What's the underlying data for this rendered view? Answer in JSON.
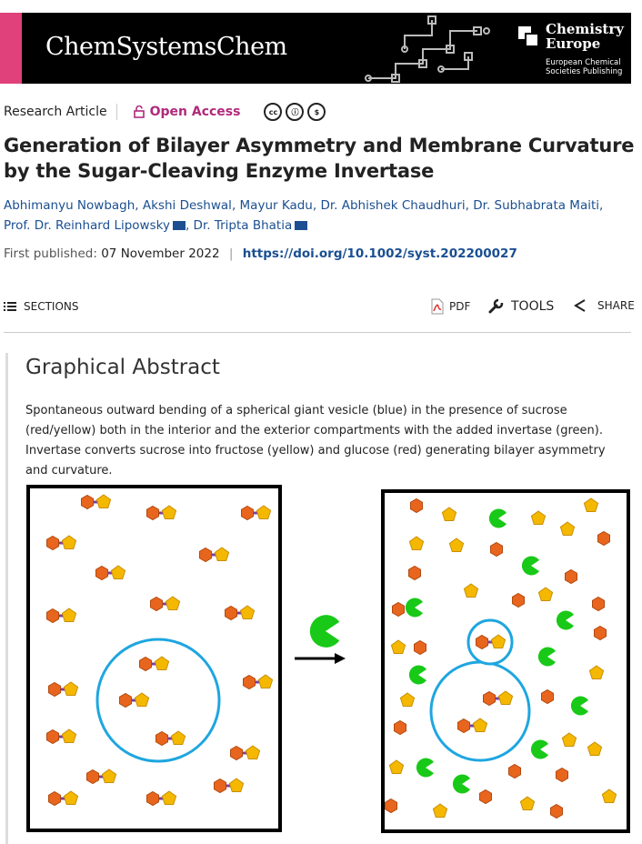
{
  "banner": {
    "journal": "ChemSystemsChem",
    "publisher": "Chemistry Europe",
    "publisher_sub": "European Chemical Societies Publishing"
  },
  "meta": {
    "article_type": "Research Article",
    "access": "Open Access"
  },
  "title": "Generation of Bilayer Asymmetry and Membrane Curvature by the Sugar-Cleaving Enzyme Invertase",
  "authors": [
    "Abhimanyu Nowbagh",
    "Akshi Deshwal",
    "Mayur Kadu",
    "Dr. Abhishek Chaudhuri",
    "Dr. Subhabrata Maiti",
    "Prof. Dr. Reinhard Lipowsky",
    "Dr. Tripta Bhatia"
  ],
  "published": {
    "label": "First published:",
    "date": "07 November 2022",
    "doi": "https://doi.org/10.1002/syst.202200027"
  },
  "toolbar": {
    "sections": "SECTIONS",
    "pdf": "PDF",
    "tools": "TOOLS",
    "share": "SHARE"
  },
  "graphical_abstract": {
    "heading": "Graphical Abstract",
    "text": "Spontaneous outward bending of a spherical giant vesicle (blue) in the presence of sucrose (red/yellow) both in the interior and the exterior compartments with the added invertase (green). Invertase converts sucrose into fructose (yellow) and glucose (red) generating bilayer asymmetry and curvature."
  },
  "colors": {
    "brand_pink": "#e0417a",
    "link_blue": "#1b4f91",
    "open_access": "#b0297b",
    "vesicle": "#1ea6e0",
    "glucose": "#e8651e",
    "fructose": "#f5b800",
    "invertase": "#18c918"
  }
}
